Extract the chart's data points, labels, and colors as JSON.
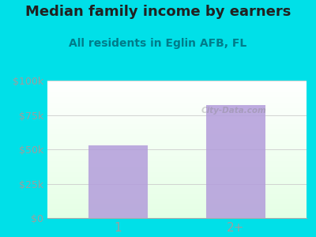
{
  "title": "Median family income by earners",
  "subtitle": "All residents in Eglin AFB, FL",
  "categories": [
    "1",
    "2+"
  ],
  "values": [
    53000,
    82000
  ],
  "bar_color": "#b39ddb",
  "outer_bg": "#00e0e8",
  "title_color": "#212121",
  "subtitle_color": "#007c8a",
  "axis_label_color": "#9e9e9e",
  "tick_color": "#9e9e9e",
  "ylim": [
    0,
    100000
  ],
  "yticks": [
    0,
    25000,
    50000,
    75000,
    100000
  ],
  "ytick_labels": [
    "$0",
    "$25k",
    "$50k",
    "$75k",
    "$100k"
  ],
  "watermark": "City-Data.com",
  "title_fontsize": 13,
  "subtitle_fontsize": 10
}
